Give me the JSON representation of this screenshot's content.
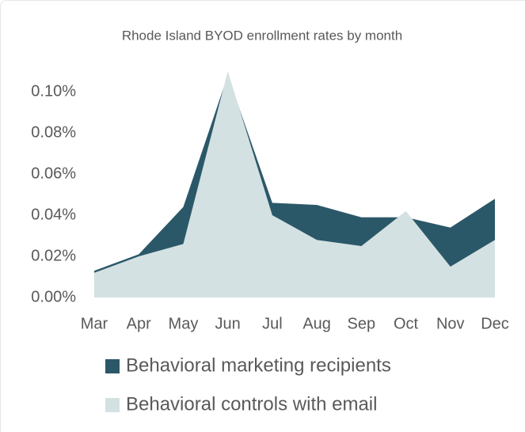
{
  "chart_data": {
    "type": "area",
    "title": "Rhode Island BYOD enrollment rates by month",
    "categories": [
      "Mar",
      "Apr",
      "May",
      "Jun",
      "Jul",
      "Aug",
      "Sep",
      "Oct",
      "Nov",
      "Dec"
    ],
    "series": [
      {
        "name": "Behavioral marketing recipients",
        "color": "#2b5868",
        "values": [
          0.013,
          0.021,
          0.044,
          0.108,
          0.046,
          0.045,
          0.039,
          0.039,
          0.034,
          0.048
        ]
      },
      {
        "name": "Behavioral controls with email",
        "color": "#d4e1e2",
        "values": [
          0.012,
          0.02,
          0.026,
          0.11,
          0.04,
          0.028,
          0.025,
          0.042,
          0.015,
          0.028
        ]
      }
    ],
    "ylim": [
      0,
      0.11
    ],
    "yticks": [
      {
        "value": 0,
        "label": "0.00%"
      },
      {
        "value": 0.02,
        "label": "0.02%"
      },
      {
        "value": 0.04,
        "label": "0.04%"
      },
      {
        "value": 0.06,
        "label": "0.06%"
      },
      {
        "value": 0.08,
        "label": "0.08%"
      },
      {
        "value": 0.1,
        "label": "0.10%"
      }
    ],
    "legend": "bottom",
    "grid": false
  }
}
